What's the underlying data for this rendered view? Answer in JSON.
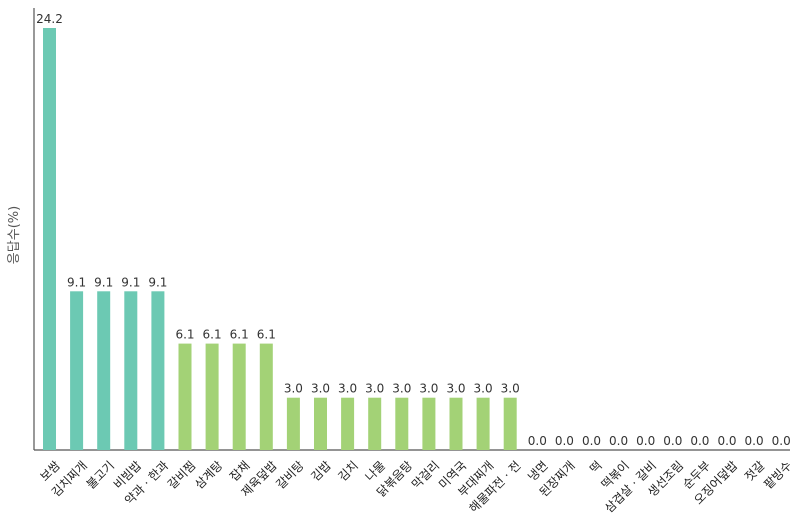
{
  "chart_data": {
    "type": "bar",
    "ylabel": "응답수(%)",
    "ylim": [
      0,
      24.2
    ],
    "grid": false,
    "legend": "none",
    "categories": [
      "보쌈",
      "김치찌개",
      "불고기",
      "비빔밥",
      "약과 · 한과",
      "갈비찜",
      "삼계탕",
      "잡채",
      "제육덮밥",
      "갈비탕",
      "김밥",
      "김치",
      "나물",
      "닭볶음탕",
      "막걸리",
      "미역국",
      "부대찌개",
      "해물파전 · 전",
      "냉면",
      "된장찌개",
      "떡",
      "떡볶이",
      "삼겹살 · 갈비",
      "생선조림",
      "순두부",
      "오징어덮밥",
      "젓갈",
      "팥빙수"
    ],
    "values": [
      24.2,
      9.1,
      9.1,
      9.1,
      9.1,
      6.1,
      6.1,
      6.1,
      6.1,
      3.0,
      3.0,
      3.0,
      3.0,
      3.0,
      3.0,
      3.0,
      3.0,
      3.0,
      0.0,
      0.0,
      0.0,
      0.0,
      0.0,
      0.0,
      0.0,
      0.0,
      0.0,
      0.0
    ],
    "value_labels": [
      "24.2",
      "9.1",
      "9.1",
      "9.1",
      "9.1",
      "6.1",
      "6.1",
      "6.1",
      "6.1",
      "3.0",
      "3.0",
      "3.0",
      "3.0",
      "3.0",
      "3.0",
      "3.0",
      "3.0",
      "3.0",
      "0.0",
      "0.0",
      "0.0",
      "0.0",
      "0.0",
      "0.0",
      "0.0",
      "0.0",
      "0.0",
      "0.0"
    ],
    "colors": {
      "teal": "#6cc9b3",
      "green": "#a3d276",
      "axis": "#555555"
    }
  }
}
